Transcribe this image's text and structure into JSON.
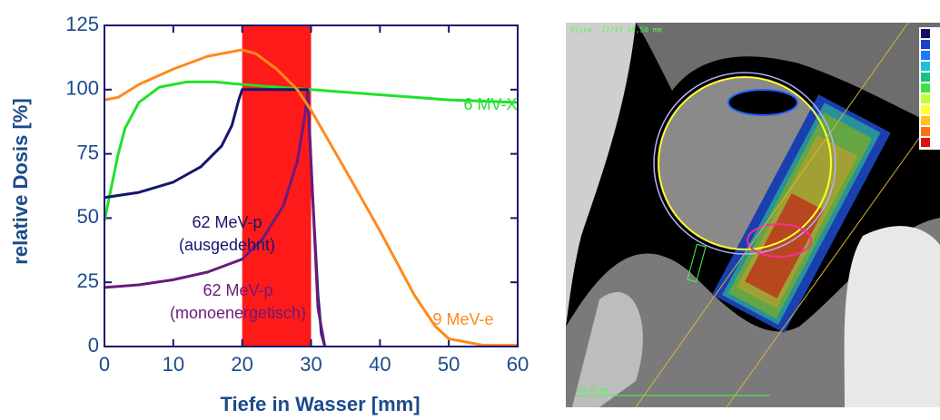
{
  "chart_data": {
    "type": "line",
    "xlabel": "Tiefe in Wasser [mm]",
    "ylabel": "relative Dosis [%]",
    "xlim": [
      0,
      60
    ],
    "xticks": [
      0,
      10,
      20,
      30,
      40,
      50,
      60
    ],
    "ylim": [
      0,
      125
    ],
    "yticks": [
      0,
      25,
      50,
      75,
      100,
      125
    ],
    "shaded_region": {
      "x": [
        20,
        30
      ],
      "color": "#ff1a1a"
    },
    "series": [
      {
        "name": "6 MV-X",
        "color": "#22e02a",
        "x": [
          0,
          1,
          2,
          3,
          5,
          8,
          12,
          16,
          20,
          25,
          30,
          35,
          40,
          45,
          50,
          55,
          60
        ],
        "values": [
          49,
          62,
          75,
          85,
          95,
          101,
          103,
          103,
          102,
          101,
          100,
          99,
          98,
          97,
          96,
          95.5,
          95
        ]
      },
      {
        "name": "62 MeV-p (ausgedehnt)",
        "color": "#16166e",
        "x": [
          0,
          5,
          10,
          14,
          17,
          18.5,
          19.5,
          20,
          25,
          29.5,
          30.2,
          31,
          31.5,
          32
        ],
        "values": [
          58,
          60,
          64,
          70,
          78,
          86,
          96,
          100,
          100,
          100,
          60,
          20,
          5,
          0
        ]
      },
      {
        "name": "62 MeV-p (monoenergetisch)",
        "color": "#6b1a7d",
        "x": [
          0,
          5,
          10,
          15,
          20,
          23,
          26,
          28,
          29,
          29.5,
          30.2,
          31,
          32
        ],
        "values": [
          23,
          24,
          26,
          29,
          34,
          42,
          55,
          72,
          88,
          99,
          60,
          15,
          0
        ]
      },
      {
        "name": "9 MeV-e",
        "color": "#ff8a1c",
        "x": [
          0,
          2,
          5,
          10,
          15,
          20,
          22,
          25,
          28,
          30,
          33,
          36,
          40,
          45,
          48,
          50,
          55,
          60
        ],
        "values": [
          96,
          97,
          102,
          108,
          113,
          115.5,
          114,
          108,
          100,
          92,
          78,
          64,
          45,
          20,
          8,
          3,
          0.5,
          0.5
        ]
      }
    ]
  },
  "ct_image": {
    "slice": "Slice: 17/17",
    "thickness": "16,50 mm",
    "scale": "25,0 mm"
  }
}
